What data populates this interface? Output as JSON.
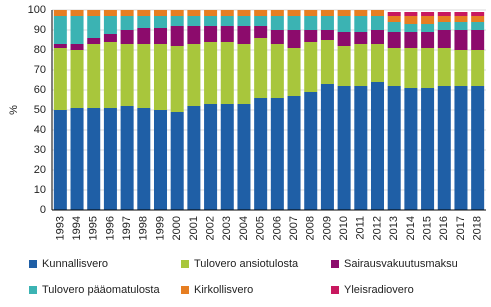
{
  "chart_data": {
    "type": "stacked-bar",
    "ylabel": "%",
    "categories": [
      "1993",
      "1994",
      "1995",
      "1996",
      "1997",
      "1998",
      "1999",
      "2000",
      "2001",
      "2002",
      "2003",
      "2004",
      "2005",
      "2006",
      "2007",
      "2008",
      "2009",
      "2010",
      "2011",
      "2012",
      "2013",
      "2014",
      "2015",
      "2016",
      "2017",
      "2018"
    ],
    "series": [
      {
        "name": "Kunnallisvero",
        "color": "#1f5fa6",
        "values": [
          50,
          51,
          51,
          51,
          52,
          51,
          50,
          49,
          52,
          53,
          53,
          53,
          56,
          56,
          57,
          59,
          63,
          62,
          62,
          64,
          62,
          61,
          61,
          62,
          62,
          62
        ]
      },
      {
        "name": "Tulovero ansiotulosta",
        "color": "#a8c63c",
        "values": [
          31,
          29,
          32,
          33,
          31,
          32,
          33,
          33,
          31,
          31,
          31,
          30,
          30,
          27,
          24,
          25,
          22,
          20,
          21,
          19,
          19,
          20,
          20,
          19,
          18,
          18
        ]
      },
      {
        "name": "Sairausvakuutusmaksu",
        "color": "#8c0b6c",
        "values": [
          2,
          3,
          3,
          4,
          7,
          8,
          8,
          10,
          9,
          8,
          8,
          9,
          6,
          7,
          9,
          6,
          5,
          7,
          6,
          7,
          8,
          8,
          8,
          9,
          10,
          10
        ]
      },
      {
        "name": "Tulovero pääomatulosta",
        "color": "#3bb3b3",
        "values": [
          14,
          14,
          11,
          9,
          7,
          6,
          6,
          5,
          5,
          5,
          5,
          5,
          5,
          7,
          7,
          7,
          7,
          8,
          8,
          7,
          5,
          4,
          4,
          4,
          4,
          4
        ]
      },
      {
        "name": "Kirkollisvero",
        "color": "#e67e22",
        "values": [
          3,
          3,
          3,
          3,
          3,
          3,
          3,
          3,
          3,
          3,
          3,
          3,
          3,
          3,
          3,
          3,
          3,
          3,
          3,
          3,
          3,
          4,
          4,
          3,
          3,
          3
        ]
      },
      {
        "name": "Yleisradiovero",
        "color": "#c8185f",
        "values": [
          null,
          null,
          null,
          null,
          null,
          null,
          null,
          null,
          null,
          null,
          null,
          null,
          null,
          null,
          null,
          null,
          null,
          null,
          null,
          null,
          2,
          2,
          2,
          2,
          2,
          2
        ]
      }
    ],
    "ylim": [
      0,
      100
    ],
    "yticks": [
      0,
      10,
      20,
      30,
      40,
      50,
      60,
      70,
      80,
      90,
      100
    ],
    "grid": true
  }
}
